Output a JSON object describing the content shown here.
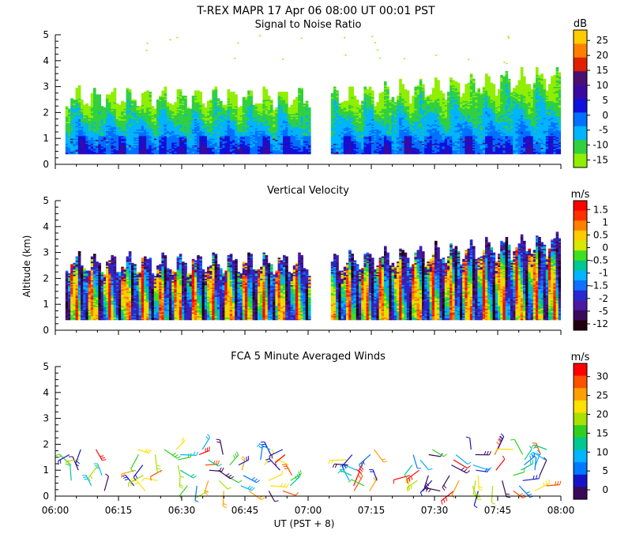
{
  "header": {
    "title": "T-REX   MAPR 17 Apr 06   08:00 UT   00:01   PST"
  },
  "colors": {
    "snr": [
      "#90ee00",
      "#30d040",
      "#00b4ff",
      "#0070ff",
      "#1010dd",
      "#3a0aa0",
      "#4a1070",
      "#e02000",
      "#ff8000",
      "#ffcc00"
    ],
    "vv": [
      "#200010",
      "#3a0a5a",
      "#4a1aa0",
      "#2828d0",
      "#1070ff",
      "#00b4ff",
      "#00c890",
      "#40e020",
      "#d8e800",
      "#ffcc00",
      "#ff8000",
      "#ff3000",
      "#ff0000"
    ],
    "wind": [
      "#3a0a5a",
      "#1515c8",
      "#0078ff",
      "#00b4ff",
      "#00c890",
      "#30d020",
      "#a8e000",
      "#ffe000",
      "#ffa000",
      "#ff5000",
      "#ff0000"
    ]
  },
  "chart_data": [
    {
      "id": "snr",
      "type": "heatmap",
      "title": "Signal to Noise Ratio",
      "ylabel": "",
      "xlabel": "",
      "ylim": [
        0,
        5
      ],
      "xlim_min": [
        0,
        120
      ],
      "data_start_altitude_km": 0.4,
      "data_gaps_min": [
        [
          0,
          2
        ],
        [
          60.5,
          65
        ]
      ],
      "yticks": [
        0,
        1,
        2,
        3,
        4,
        5
      ],
      "colorbar": {
        "unit": "dB",
        "ticks": [
          "25",
          "20",
          "15",
          "10",
          "5",
          "0",
          "-5",
          "-10",
          "-15"
        ]
      }
    },
    {
      "id": "vv",
      "type": "heatmap",
      "title": "Vertical Velocity",
      "ylabel": "Altitude (km)",
      "xlabel": "",
      "ylim": [
        0,
        5
      ],
      "xlim_min": [
        0,
        120
      ],
      "data_start_altitude_km": 0.4,
      "data_gaps_min": [
        [
          0,
          2
        ],
        [
          60.5,
          65
        ]
      ],
      "yticks": [
        0,
        1,
        2,
        3,
        4,
        5
      ],
      "colorbar": {
        "unit": "m/s",
        "ticks": [
          "1.5",
          "1",
          "0.5",
          "0",
          "-0.5",
          "-1",
          "-1.5",
          "-2",
          "-5",
          "-12"
        ]
      }
    },
    {
      "id": "winds",
      "type": "scatter",
      "title": "FCA 5 Minute Averaged Winds",
      "ylabel": "",
      "xlabel": "UT  (PST + 8)",
      "ylim": [
        0,
        5
      ],
      "xlim_min": [
        0,
        120
      ],
      "x_tick_labels": [
        "06:00",
        "06:15",
        "06:30",
        "06:45",
        "07:00",
        "07:15",
        "07:30",
        "07:45",
        "08:00"
      ],
      "yticks": [
        0,
        1,
        2,
        3,
        4,
        5
      ],
      "colorbar": {
        "unit": "m/s",
        "ticks": [
          "30",
          "25",
          "20",
          "15",
          "10",
          "5",
          "0"
        ]
      },
      "wind_times_min": [
        5,
        10,
        20,
        25,
        30,
        35,
        40,
        45,
        50,
        55,
        70,
        75,
        85,
        90,
        95,
        100,
        105,
        110,
        115
      ],
      "wind_altitudes_km": [
        0.2,
        0.4,
        0.6,
        0.8,
        1.0,
        1.2,
        1.4,
        1.6,
        1.8
      ]
    }
  ]
}
